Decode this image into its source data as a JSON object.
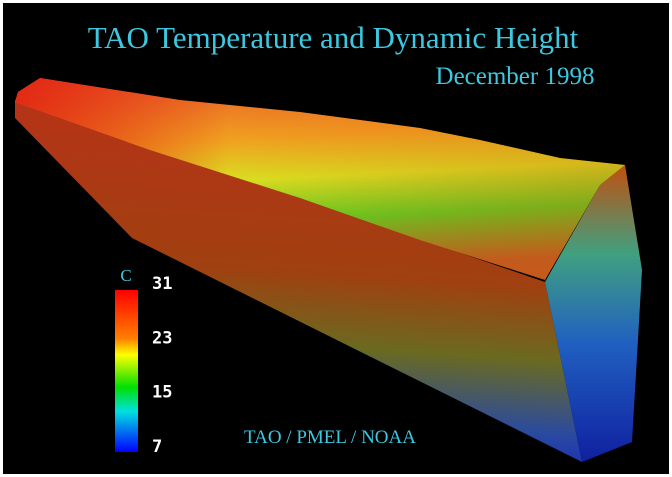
{
  "header": {
    "title": "TAO Temperature and Dynamic Height",
    "subtitle": "December 1998"
  },
  "colorbar": {
    "unit": "C",
    "range": [
      7,
      31
    ],
    "ticks": [
      31,
      23,
      15,
      7
    ]
  },
  "credit": "TAO / PMEL / NOAA"
}
